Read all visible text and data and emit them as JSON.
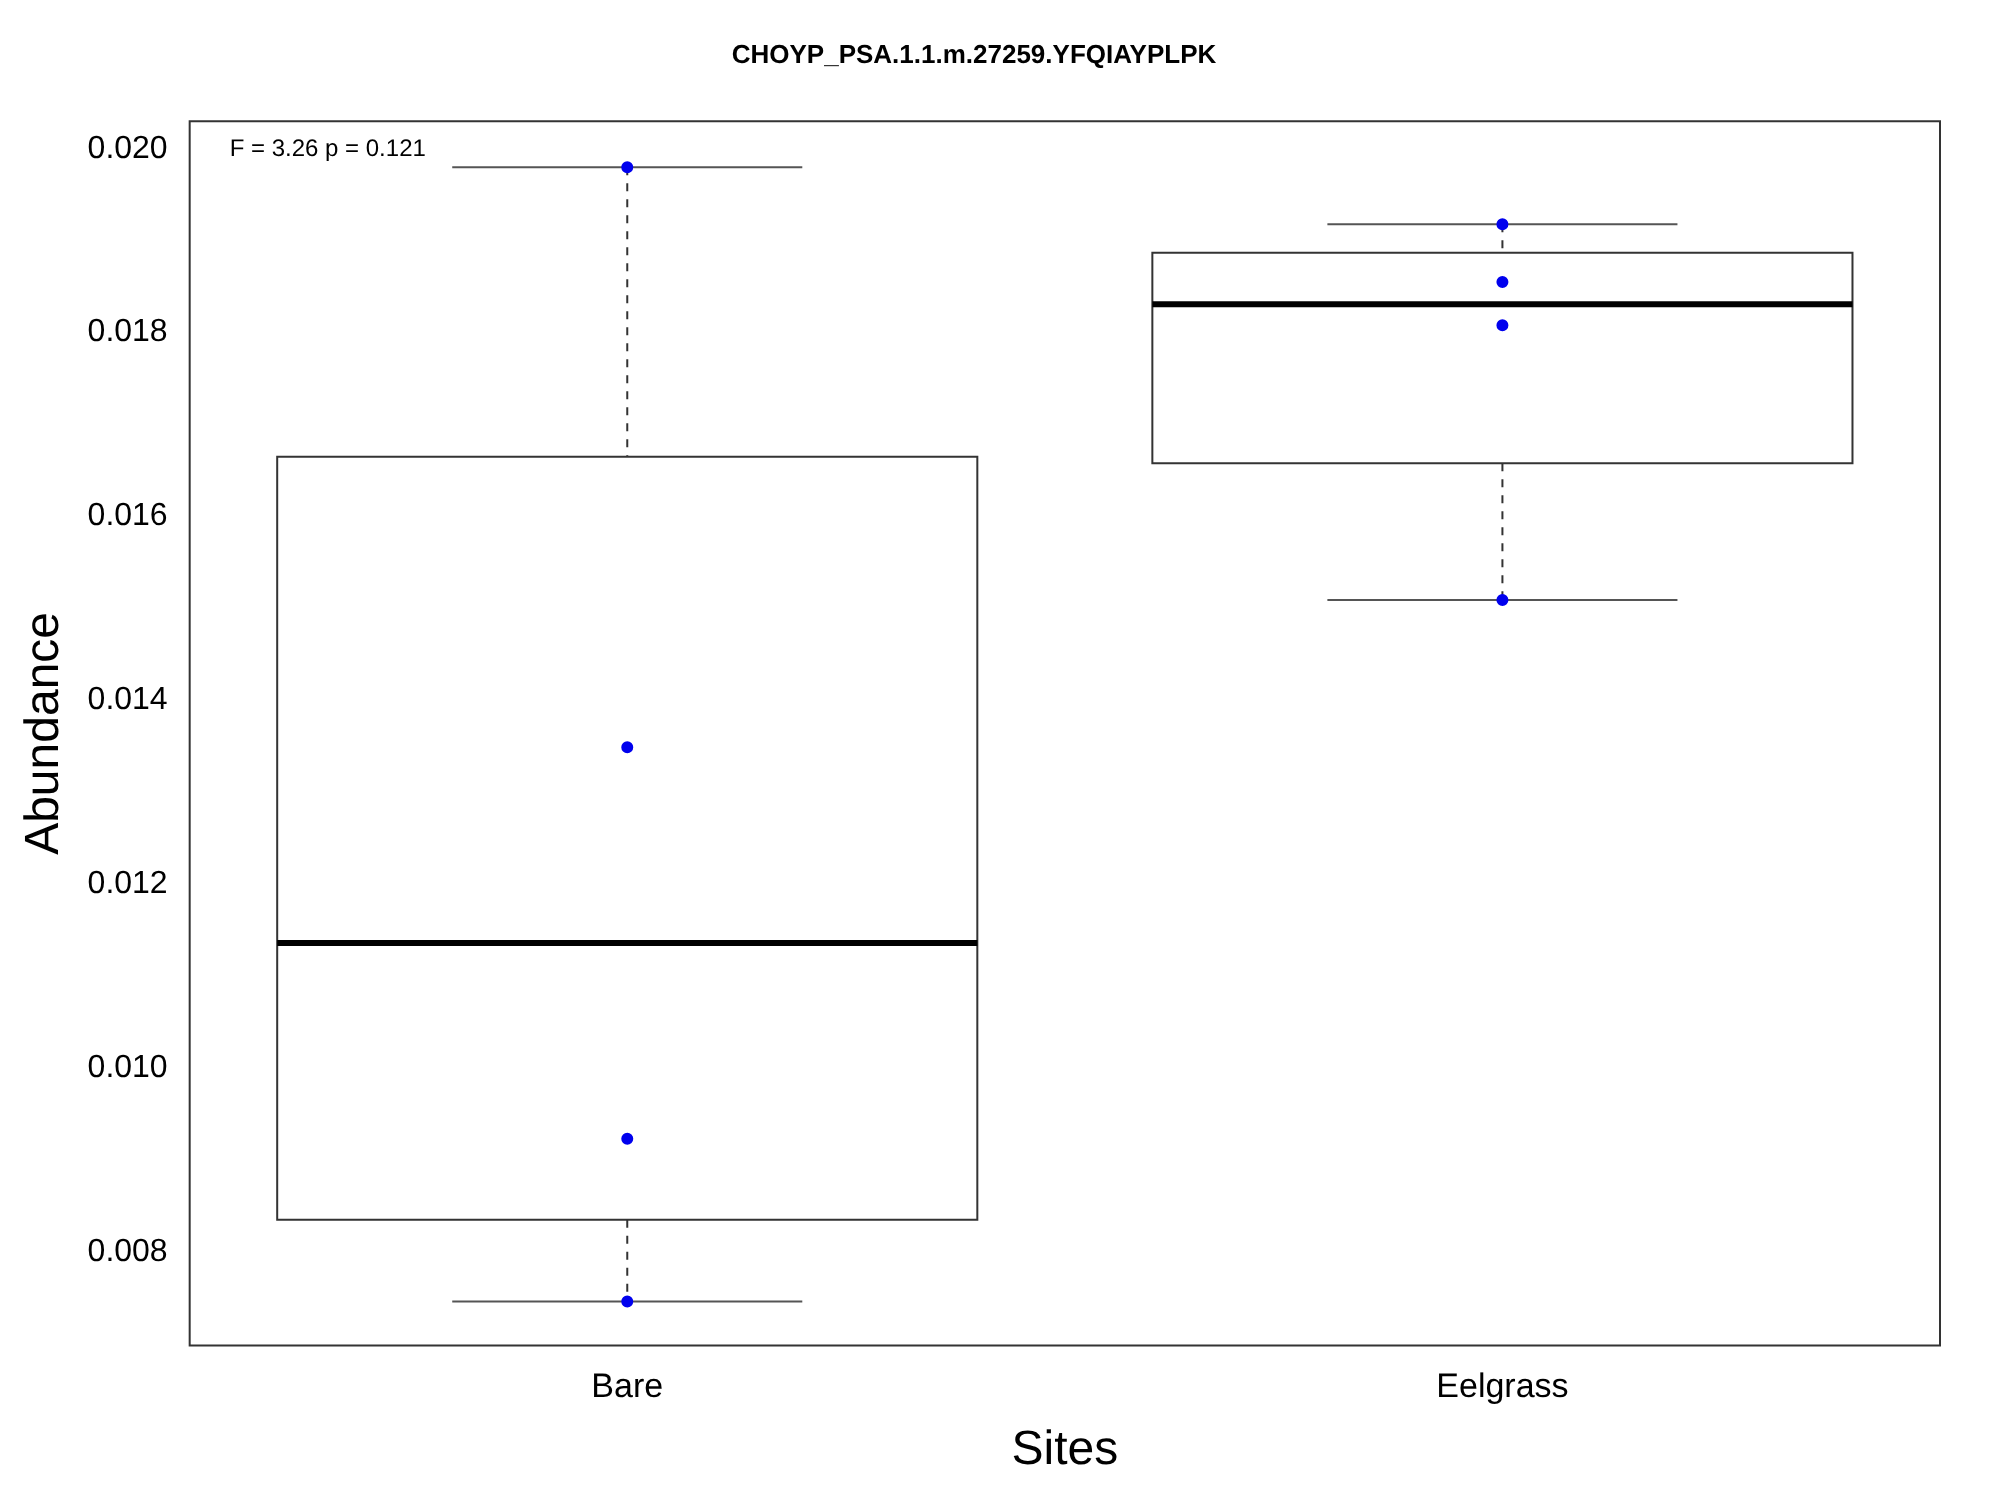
{
  "chart_data": {
    "type": "box",
    "title": "CHOYP_PSA.1.1.m.27259.YFQIAYPLPK",
    "xlabel": "Sites",
    "ylabel": "Abundance",
    "categories": [
      "Bare",
      "Eelgrass"
    ],
    "boxes": [
      {
        "low": 0.00746,
        "q1": 0.00835,
        "median": 0.01136,
        "q3": 0.01665,
        "high": 0.0198
      },
      {
        "low": 0.01509,
        "q1": 0.01658,
        "median": 0.01831,
        "q3": 0.01887,
        "high": 0.01918
      }
    ],
    "series": [
      {
        "type": "scatter",
        "color": "#0000ee",
        "x": [
          "Bare",
          "Bare",
          "Bare",
          "Bare",
          "Eelgrass",
          "Eelgrass",
          "Eelgrass",
          "Eelgrass"
        ],
        "values": [
          0.0198,
          0.01349,
          0.00923,
          0.00746,
          0.01918,
          0.01855,
          0.01808,
          0.01509
        ]
      }
    ],
    "ylim": [
      0.00698,
      0.0203
    ],
    "yticks": [
      0.008,
      {
        "value": 0.01,
        "label": "0.010"
      },
      0.012,
      0.014,
      0.016,
      0.018,
      {
        "value": 0.02,
        "label": "0.020"
      }
    ],
    "grid": false,
    "legend": false,
    "marker": "circle",
    "annotations": [
      "F = 3.26 p = 0.121"
    ]
  }
}
